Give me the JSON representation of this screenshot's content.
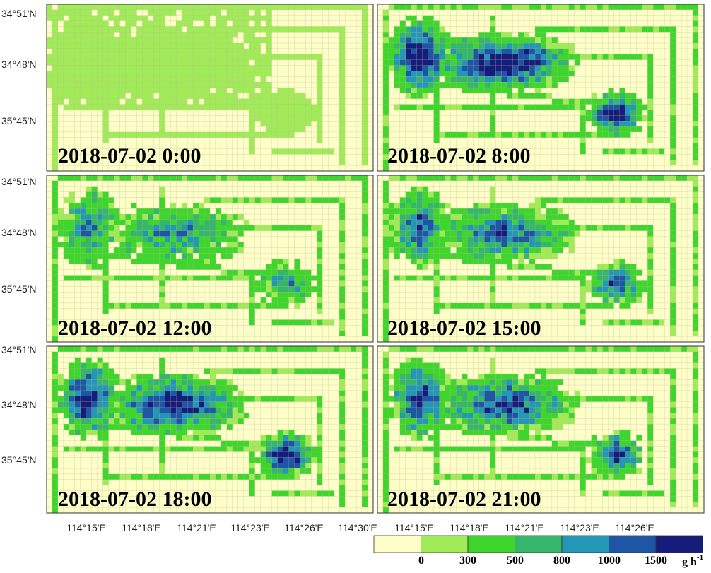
{
  "map": {
    "panels": [
      {
        "id": "p0000",
        "title": "2018-07-02 0:00"
      },
      {
        "id": "p0800",
        "title": "2018-07-02 8:00"
      },
      {
        "id": "p1200",
        "title": "2018-07-02 12:00"
      },
      {
        "id": "p1500",
        "title": "2018-07-02 15:00"
      },
      {
        "id": "p1800",
        "title": "2018-07-02 18:00"
      },
      {
        "id": "p2100",
        "title": "2018-07-02 21:00"
      }
    ],
    "lat_ticks": [
      "34°51'N",
      "34°48'N",
      "35°45'N"
    ],
    "lon_ticks_left": [
      "114°15'E",
      "114°18'E",
      "114°21'E",
      "114°23'E",
      "114°26'E",
      "114°30'E"
    ],
    "lon_ticks_right": [
      "114°15'E",
      "114°18'E",
      "114°21'E",
      "114°23'E",
      "114°26'E"
    ]
  },
  "legend": {
    "colors": [
      "#fefec8",
      "#a2eb58",
      "#3ed62c",
      "#35b66a",
      "#2397b5",
      "#1f55a5",
      "#161c7a"
    ],
    "labels": [
      "0",
      "300",
      "500",
      "800",
      "1000",
      "1500"
    ],
    "unit": "g h",
    "unit_sup": "-1"
  }
}
